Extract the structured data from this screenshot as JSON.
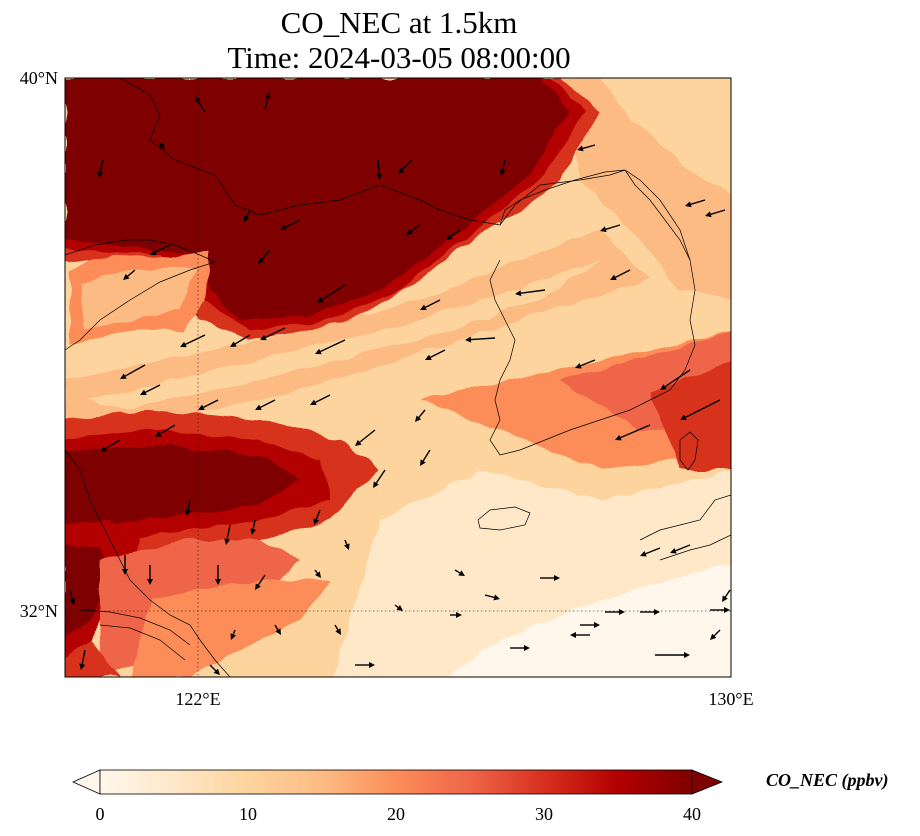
{
  "title": {
    "line1": "CO_NEC at 1.5km",
    "line2": "Time: 2024-03-05 08:00:00"
  },
  "map": {
    "extent": {
      "lon_min": 120,
      "lon_max": 130,
      "lat_min": 31,
      "lat_max": 40
    },
    "lat_ticks": [
      {
        "value": 40,
        "label": "40°N"
      },
      {
        "value": 32,
        "label": "32°N"
      }
    ],
    "lon_ticks": [
      {
        "value": 122,
        "label": "122°E"
      },
      {
        "value": 130,
        "label": "130°E"
      }
    ],
    "gridlines": "dotted",
    "variable": "CO_NEC",
    "units": "ppbv",
    "vectors": "wind arrows",
    "colormap": "OrRd"
  },
  "colorbar": {
    "label": "CO_NEC (ppbv)",
    "min": 0,
    "max": 40,
    "extend": "both",
    "ticks": [
      "0",
      "10",
      "20",
      "30",
      "40"
    ],
    "colors": [
      "#fff7ec",
      "#fee8c8",
      "#fdd49e",
      "#fdbb84",
      "#fc8d59",
      "#ef6548",
      "#d7301f",
      "#b30000",
      "#7f0000"
    ]
  }
}
